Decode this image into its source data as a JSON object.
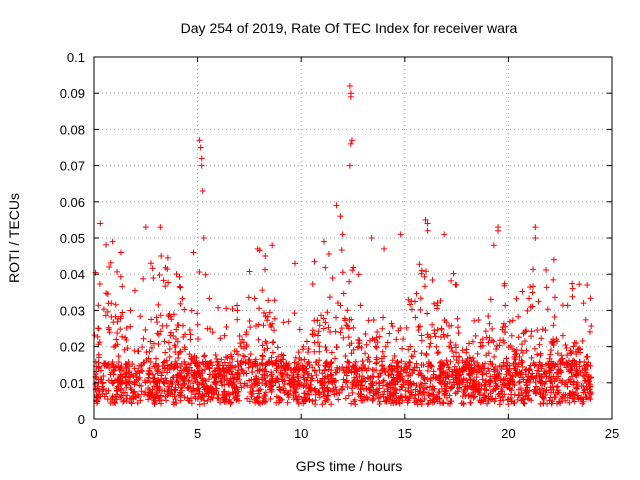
{
  "chart_data": {
    "type": "scatter",
    "title": "Day 254 of 2019, Rate Of TEC Index for receiver wara",
    "xlabel": "GPS time / hours",
    "ylabel": "ROTI / TECUs",
    "xlim": [
      0,
      25
    ],
    "ylim": [
      0,
      0.1
    ],
    "xticks": [
      0,
      5,
      10,
      15,
      20,
      25
    ],
    "xtick_labels": [
      "0",
      "5",
      "10",
      "15",
      "20",
      "25"
    ],
    "yticks": [
      0,
      0.01,
      0.02,
      0.03,
      0.04,
      0.05,
      0.06,
      0.07,
      0.08,
      0.09,
      0.1
    ],
    "ytick_labels": [
      "0",
      "0.01",
      "0.02",
      "0.03",
      "0.04",
      "0.05",
      "0.06",
      "0.07",
      "0.08",
      "0.09",
      "0.1"
    ],
    "grid": true,
    "marker": "+",
    "color": "#ff0000",
    "series": [
      {
        "name": "ROTI",
        "description_note": "dense point cloud spanning 0-24 h, mostly 0.003-0.035 TECU/s",
        "points": [
          [
            0.3,
            0.054
          ],
          [
            0.9,
            0.049
          ],
          [
            1.3,
            0.046
          ],
          [
            2.5,
            0.053
          ],
          [
            3.2,
            0.053
          ],
          [
            4.8,
            0.046
          ],
          [
            5.1,
            0.077
          ],
          [
            5.15,
            0.075
          ],
          [
            5.2,
            0.072
          ],
          [
            5.2,
            0.07
          ],
          [
            5.25,
            0.063
          ],
          [
            5.3,
            0.05
          ],
          [
            7.9,
            0.047
          ],
          [
            8.6,
            0.048
          ],
          [
            9.7,
            0.043
          ],
          [
            11.1,
            0.049
          ],
          [
            11.7,
            0.059
          ],
          [
            11.9,
            0.056
          ],
          [
            12.0,
            0.051
          ],
          [
            12.35,
            0.092
          ],
          [
            12.4,
            0.09
          ],
          [
            12.4,
            0.089
          ],
          [
            12.45,
            0.077
          ],
          [
            12.4,
            0.076
          ],
          [
            12.35,
            0.07
          ],
          [
            13.4,
            0.05
          ],
          [
            14.0,
            0.047
          ],
          [
            14.8,
            0.051
          ],
          [
            16.0,
            0.055
          ],
          [
            16.1,
            0.054
          ],
          [
            16.1,
            0.052
          ],
          [
            16.9,
            0.051
          ],
          [
            19.3,
            0.048
          ],
          [
            19.5,
            0.053
          ],
          [
            19.5,
            0.052
          ],
          [
            21.3,
            0.053
          ],
          [
            21.3,
            0.05
          ],
          [
            22.2,
            0.044
          ],
          [
            23.1,
            0.036
          ],
          [
            23.8,
            0.037
          ]
        ]
      }
    ]
  }
}
